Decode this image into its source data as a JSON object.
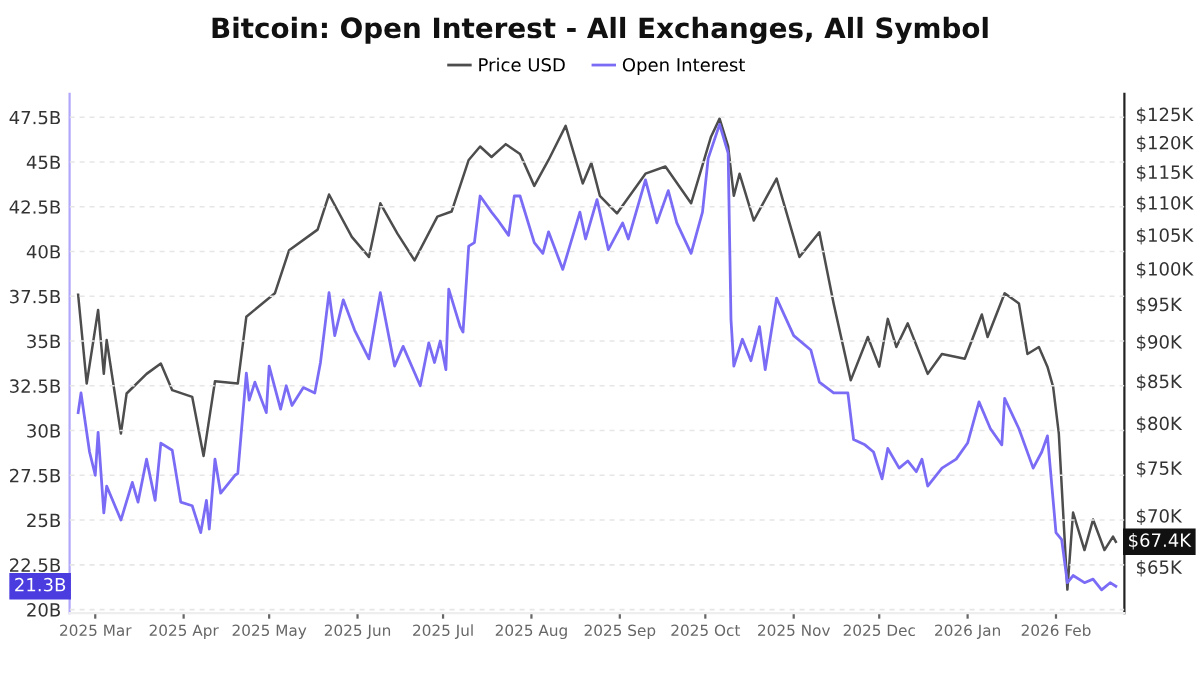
{
  "chart_data": {
    "type": "line",
    "title": "Bitcoin: Open Interest - All Exchanges, All Symbol",
    "legend": "top",
    "grid": "y",
    "log": "y2",
    "line_style": "solid",
    "marker": "none",
    "xlim": [
      "2025-02-20",
      "2026-02-25"
    ],
    "xticks": [
      {
        "value": "2025-03-01",
        "label": "2025 Mar"
      },
      {
        "value": "2025-04-01",
        "label": "2025 Apr"
      },
      {
        "value": "2025-05-01",
        "label": "2025 May"
      },
      {
        "value": "2025-06-01",
        "label": "2025 Jun"
      },
      {
        "value": "2025-07-01",
        "label": "2025 Jul"
      },
      {
        "value": "2025-08-01",
        "label": "2025 Aug"
      },
      {
        "value": "2025-09-01",
        "label": "2025 Sep"
      },
      {
        "value": "2025-10-01",
        "label": "2025 Oct"
      },
      {
        "value": "2025-11-01",
        "label": "2025 Nov"
      },
      {
        "value": "2025-12-01",
        "label": "2025 Dec"
      },
      {
        "value": "2026-01-01",
        "label": "2026 Jan"
      },
      {
        "value": "2026-02-01",
        "label": "2026 Feb"
      }
    ],
    "ylim": [
      19.8,
      48.8
    ],
    "yticks": [
      {
        "value": 20,
        "label": "20B"
      },
      {
        "value": 22.5,
        "label": "22.5B"
      },
      {
        "value": 25,
        "label": "25B"
      },
      {
        "value": 27.5,
        "label": "27.5B"
      },
      {
        "value": 30,
        "label": "30B"
      },
      {
        "value": 32.5,
        "label": "32.5B"
      },
      {
        "value": 35,
        "label": "35B"
      },
      {
        "value": 37.5,
        "label": "37.5B"
      },
      {
        "value": 40,
        "label": "40B"
      },
      {
        "value": 42.5,
        "label": "42.5B"
      },
      {
        "value": 45,
        "label": "45B"
      },
      {
        "value": 47.5,
        "label": "47.5B"
      }
    ],
    "y2lim": [
      60.8,
      128.7
    ],
    "y2ticks": [
      {
        "value": 65,
        "label": "$65K"
      },
      {
        "value": 70,
        "label": "$70K"
      },
      {
        "value": 75,
        "label": "$75K"
      },
      {
        "value": 80,
        "label": "$80K"
      },
      {
        "value": 85,
        "label": "$85K"
      },
      {
        "value": 90,
        "label": "$90K"
      },
      {
        "value": 95,
        "label": "$95K"
      },
      {
        "value": 100,
        "label": "$100K"
      },
      {
        "value": 105,
        "label": "$105K"
      },
      {
        "value": 110,
        "label": "$110K"
      },
      {
        "value": 115,
        "label": "$115K"
      },
      {
        "value": 120,
        "label": "$120K"
      },
      {
        "value": 125,
        "label": "$125K"
      }
    ],
    "series": [
      {
        "name": "Price USD",
        "color": "#4d4d4d",
        "axis": "y2",
        "x": [
          "2025-02-23",
          "2025-02-26",
          "2025-03-02",
          "2025-03-04",
          "2025-03-05",
          "2025-03-10",
          "2025-03-12",
          "2025-03-19",
          "2025-03-24",
          "2025-03-28",
          "2025-04-04",
          "2025-04-08",
          "2025-04-12",
          "2025-04-20",
          "2025-04-23",
          "2025-05-03",
          "2025-05-08",
          "2025-05-18",
          "2025-05-22",
          "2025-05-30",
          "2025-06-05",
          "2025-06-09",
          "2025-06-15",
          "2025-06-21",
          "2025-06-29",
          "2025-07-04",
          "2025-07-10",
          "2025-07-14",
          "2025-07-18",
          "2025-07-23",
          "2025-07-28",
          "2025-08-02",
          "2025-08-07",
          "2025-08-13",
          "2025-08-19",
          "2025-08-22",
          "2025-08-25",
          "2025-08-31",
          "2025-09-10",
          "2025-09-17",
          "2025-09-26",
          "2025-10-03",
          "2025-10-06",
          "2025-10-09",
          "2025-10-11",
          "2025-10-13",
          "2025-10-18",
          "2025-10-26",
          "2025-11-03",
          "2025-11-10",
          "2025-11-15",
          "2025-11-21",
          "2025-11-27",
          "2025-12-01",
          "2025-12-04",
          "2025-12-07",
          "2025-12-11",
          "2025-12-18",
          "2025-12-23",
          "2025-12-31",
          "2026-01-06",
          "2026-01-08",
          "2026-01-14",
          "2026-01-19",
          "2026-01-22",
          "2026-01-26",
          "2026-01-29",
          "2026-01-31",
          "2026-02-02",
          "2026-02-05",
          "2026-02-07",
          "2026-02-11",
          "2026-02-14",
          "2026-02-18",
          "2026-02-21",
          "2026-02-22"
        ],
        "values": [
          96.3,
          84.7,
          94.2,
          85.9,
          90.2,
          78.8,
          83.5,
          85.9,
          87.2,
          83.9,
          83.1,
          76.3,
          85.0,
          84.7,
          93.3,
          96.5,
          102.7,
          105.8,
          111.3,
          104.7,
          101.7,
          109.9,
          105.2,
          101.2,
          107.8,
          108.6,
          117.0,
          119.3,
          117.5,
          119.7,
          118.0,
          112.7,
          117.0,
          122.9,
          113.1,
          116.5,
          111.1,
          108.3,
          114.7,
          115.9,
          109.9,
          121.0,
          124.2,
          119.3,
          111.1,
          114.7,
          107.2,
          113.9,
          101.7,
          105.4,
          95.1,
          85.1,
          90.6,
          86.8,
          93.0,
          89.3,
          92.4,
          85.9,
          88.4,
          87.8,
          93.6,
          90.6,
          96.5,
          95.1,
          88.4,
          89.3,
          86.8,
          84.3,
          78.8,
          62.9,
          70.3,
          66.6,
          69.6,
          66.6,
          67.9,
          67.4
        ]
      },
      {
        "name": "Open Interest",
        "color": "#7b6cf6",
        "axis": "y",
        "x": [
          "2025-02-23",
          "2025-02-24",
          "2025-02-27",
          "2025-03-01",
          "2025-03-02",
          "2025-03-04",
          "2025-03-05",
          "2025-03-10",
          "2025-03-14",
          "2025-03-16",
          "2025-03-19",
          "2025-03-22",
          "2025-03-24",
          "2025-03-28",
          "2025-03-31",
          "2025-04-04",
          "2025-04-07",
          "2025-04-09",
          "2025-04-10",
          "2025-04-12",
          "2025-04-14",
          "2025-04-19",
          "2025-04-20",
          "2025-04-23",
          "2025-04-24",
          "2025-04-26",
          "2025-04-30",
          "2025-05-01",
          "2025-05-05",
          "2025-05-07",
          "2025-05-09",
          "2025-05-13",
          "2025-05-17",
          "2025-05-19",
          "2025-05-22",
          "2025-05-24",
          "2025-05-27",
          "2025-05-31",
          "2025-06-05",
          "2025-06-09",
          "2025-06-14",
          "2025-06-17",
          "2025-06-23",
          "2025-06-26",
          "2025-06-28",
          "2025-06-30",
          "2025-07-02",
          "2025-07-03",
          "2025-07-07",
          "2025-07-08",
          "2025-07-10",
          "2025-07-12",
          "2025-07-14",
          "2025-07-18",
          "2025-07-20",
          "2025-07-24",
          "2025-07-26",
          "2025-07-28",
          "2025-08-02",
          "2025-08-05",
          "2025-08-07",
          "2025-08-12",
          "2025-08-18",
          "2025-08-20",
          "2025-08-24",
          "2025-08-28",
          "2025-09-02",
          "2025-09-04",
          "2025-09-10",
          "2025-09-14",
          "2025-09-18",
          "2025-09-21",
          "2025-09-26",
          "2025-09-30",
          "2025-10-02",
          "2025-10-06",
          "2025-10-09",
          "2025-10-10",
          "2025-10-11",
          "2025-10-14",
          "2025-10-17",
          "2025-10-20",
          "2025-10-22",
          "2025-10-26",
          "2025-11-01",
          "2025-11-07",
          "2025-11-10",
          "2025-11-15",
          "2025-11-20",
          "2025-11-22",
          "2025-11-26",
          "2025-11-29",
          "2025-12-02",
          "2025-12-04",
          "2025-12-08",
          "2025-12-11",
          "2025-12-14",
          "2025-12-16",
          "2025-12-18",
          "2025-12-23",
          "2025-12-28",
          "2026-01-01",
          "2026-01-05",
          "2026-01-09",
          "2026-01-13",
          "2026-01-14",
          "2026-01-19",
          "2026-01-24",
          "2026-01-27",
          "2026-01-29",
          "2026-02-01",
          "2026-02-03",
          "2026-02-05",
          "2026-02-07",
          "2026-02-11",
          "2026-02-14",
          "2026-02-17",
          "2026-02-20",
          "2026-02-22"
        ],
        "values": [
          31.0,
          32.1,
          28.8,
          27.5,
          29.9,
          25.4,
          26.9,
          25.0,
          27.1,
          26.0,
          28.4,
          26.1,
          29.3,
          28.9,
          26.0,
          25.8,
          24.3,
          26.1,
          24.5,
          28.4,
          26.5,
          27.5,
          27.6,
          33.2,
          31.7,
          32.7,
          31.0,
          33.6,
          31.2,
          32.5,
          31.4,
          32.4,
          32.1,
          33.8,
          37.7,
          35.3,
          37.3,
          35.6,
          34.0,
          37.7,
          33.6,
          34.7,
          32.5,
          34.9,
          33.8,
          35.0,
          33.4,
          37.9,
          35.8,
          35.5,
          40.3,
          40.5,
          43.1,
          42.2,
          41.8,
          40.9,
          43.1,
          43.1,
          40.5,
          39.9,
          41.1,
          39.0,
          42.2,
          40.7,
          42.9,
          40.1,
          41.6,
          40.7,
          44.0,
          41.6,
          43.4,
          41.6,
          39.9,
          42.2,
          45.2,
          47.1,
          45.5,
          36.2,
          33.6,
          35.1,
          33.9,
          35.8,
          33.4,
          37.4,
          35.3,
          34.5,
          32.7,
          32.1,
          32.1,
          29.5,
          29.2,
          28.8,
          27.3,
          29.0,
          27.9,
          28.3,
          27.7,
          28.4,
          26.9,
          27.9,
          28.4,
          29.3,
          31.6,
          30.1,
          29.2,
          31.8,
          30.1,
          27.9,
          28.8,
          29.7,
          24.3,
          23.9,
          21.5,
          21.9,
          21.5,
          21.7,
          21.1,
          21.5,
          21.3
        ]
      }
    ],
    "annotations": [
      "$67.4K",
      "21.3B"
    ]
  }
}
